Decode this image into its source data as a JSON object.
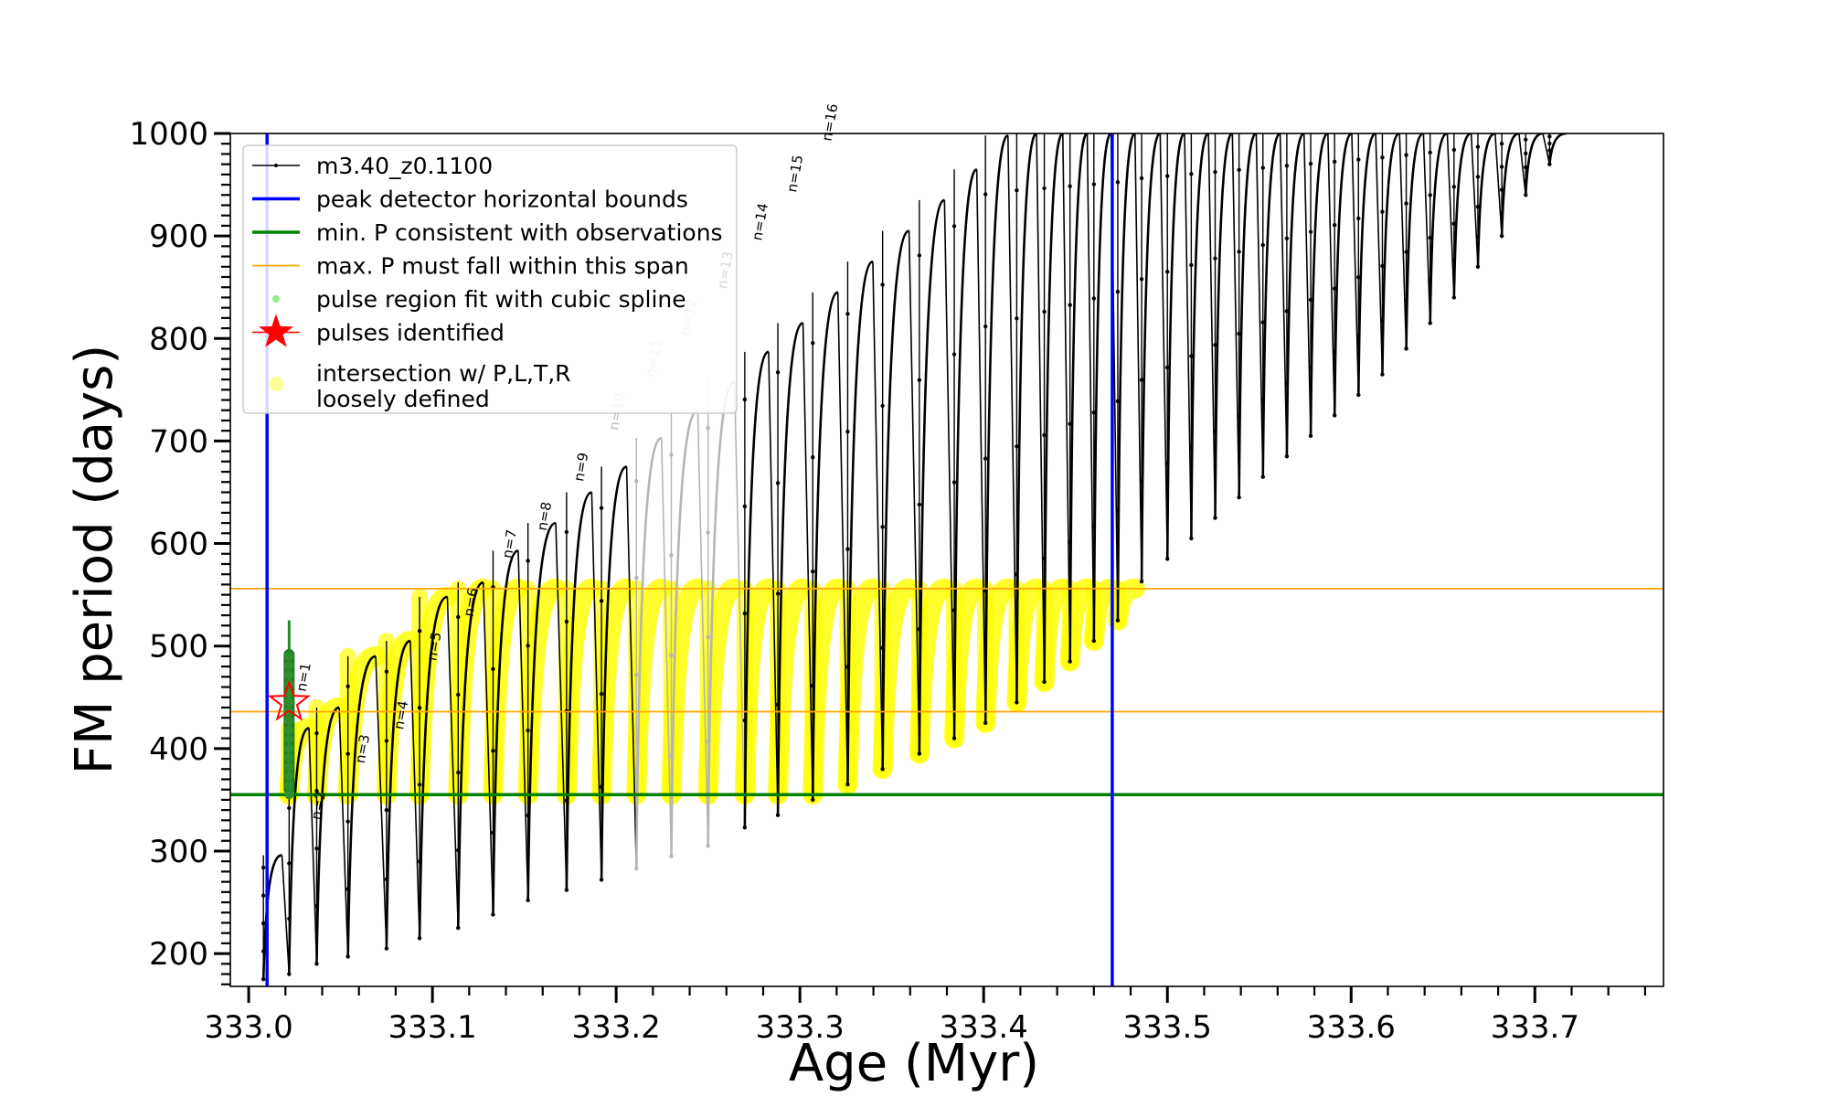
{
  "chart_data": {
    "type": "line",
    "xlabel": "Age (Myr)",
    "ylabel": "FM period (days)",
    "xlim": [
      332.99,
      333.77
    ],
    "ylim": [
      168,
      1000
    ],
    "x_ticks": [
      "333.0",
      "333.1",
      "333.2",
      "333.3",
      "333.4",
      "333.5",
      "333.6",
      "333.7"
    ],
    "y_ticks": [
      "200",
      "300",
      "400",
      "500",
      "600",
      "700",
      "800",
      "900",
      "1000"
    ],
    "grid": false,
    "legend_position": "top-left",
    "legend": [
      {
        "label": "m3.40_z0.1100",
        "style": "line-dot",
        "color": "#000000"
      },
      {
        "label": "peak detector horizontal bounds",
        "style": "line",
        "color": "#0000ff"
      },
      {
        "label": "min. P consistent with observations",
        "style": "line",
        "color": "#008000"
      },
      {
        "label": "max. P must fall within this span",
        "style": "thin-line",
        "color": "#ffa500"
      },
      {
        "label": "pulse region fit with cubic spline",
        "style": "dot",
        "color": "#90ee90"
      },
      {
        "label": "pulses identified",
        "style": "star",
        "color": "#ff0000"
      },
      {
        "label": "intersection w/ P,L,T,R",
        "label2": "loosely defined",
        "style": "big-dot",
        "color": "#ffff99"
      }
    ],
    "reference_lines": {
      "vertical_blue_x": [
        333.01,
        333.47
      ],
      "horizontal_green_y": 355,
      "horizontal_orange_y": [
        436,
        556
      ]
    },
    "series": [
      {
        "name": "m3.40_z0.1100",
        "pulses": [
          {
            "x": 333.008,
            "min": 175,
            "max": 296
          },
          {
            "x": 333.022,
            "min": 180,
            "max": 420
          },
          {
            "x": 333.037,
            "min": 190,
            "max": 440
          },
          {
            "x": 333.054,
            "min": 197,
            "max": 490
          },
          {
            "x": 333.075,
            "min": 205,
            "max": 505
          },
          {
            "x": 333.093,
            "min": 215,
            "max": 548
          },
          {
            "x": 333.114,
            "min": 225,
            "max": 562
          },
          {
            "x": 333.133,
            "min": 238,
            "max": 593
          },
          {
            "x": 333.152,
            "min": 252,
            "max": 620
          },
          {
            "x": 333.173,
            "min": 262,
            "max": 650
          },
          {
            "x": 333.192,
            "min": 272,
            "max": 675
          },
          {
            "x": 333.211,
            "min": 283,
            "max": 703
          },
          {
            "x": 333.23,
            "min": 295,
            "max": 730
          },
          {
            "x": 333.25,
            "min": 305,
            "max": 758
          },
          {
            "x": 333.27,
            "min": 323,
            "max": 787
          },
          {
            "x": 333.288,
            "min": 335,
            "max": 815
          },
          {
            "x": 333.307,
            "min": 350,
            "max": 845
          },
          {
            "x": 333.326,
            "min": 365,
            "max": 875
          },
          {
            "x": 333.345,
            "min": 380,
            "max": 905
          },
          {
            "x": 333.365,
            "min": 395,
            "max": 935
          },
          {
            "x": 333.384,
            "min": 410,
            "max": 965
          },
          {
            "x": 333.401,
            "min": 425,
            "max": 998
          },
          {
            "x": 333.418,
            "min": 445,
            "max": 1000
          },
          {
            "x": 333.433,
            "min": 465,
            "max": 1000
          },
          {
            "x": 333.447,
            "min": 485,
            "max": 1000
          },
          {
            "x": 333.46,
            "min": 505,
            "max": 1000
          },
          {
            "x": 333.473,
            "min": 525,
            "max": 1000
          },
          {
            "x": 333.486,
            "min": 563,
            "max": 1000
          },
          {
            "x": 333.5,
            "min": 585,
            "max": 1000
          },
          {
            "x": 333.513,
            "min": 605,
            "max": 1000
          },
          {
            "x": 333.526,
            "min": 625,
            "max": 1000
          },
          {
            "x": 333.539,
            "min": 645,
            "max": 1000
          },
          {
            "x": 333.552,
            "min": 665,
            "max": 1000
          },
          {
            "x": 333.565,
            "min": 685,
            "max": 1000
          },
          {
            "x": 333.578,
            "min": 705,
            "max": 1000
          },
          {
            "x": 333.591,
            "min": 725,
            "max": 1000
          },
          {
            "x": 333.604,
            "min": 745,
            "max": 1000
          },
          {
            "x": 333.617,
            "min": 765,
            "max": 1000
          },
          {
            "x": 333.63,
            "min": 790,
            "max": 1000
          },
          {
            "x": 333.643,
            "min": 815,
            "max": 1000
          },
          {
            "x": 333.656,
            "min": 840,
            "max": 1000
          },
          {
            "x": 333.669,
            "min": 870,
            "max": 1000
          },
          {
            "x": 333.682,
            "min": 900,
            "max": 1000
          },
          {
            "x": 333.695,
            "min": 940,
            "max": 1000
          },
          {
            "x": 333.708,
            "min": 970,
            "max": 1000
          }
        ]
      }
    ],
    "pulse_labels": [
      {
        "text": "n=1",
        "x": 333.031,
        "y": 455,
        "color": "#000000"
      },
      {
        "text": "n=2",
        "x": 333.039,
        "y": 330,
        "color": "#000000"
      },
      {
        "text": "n=3",
        "x": 333.063,
        "y": 385,
        "color": "#000000"
      },
      {
        "text": "n=4",
        "x": 333.084,
        "y": 418,
        "color": "#000000"
      },
      {
        "text": "n=5",
        "x": 333.102,
        "y": 485,
        "color": "#000000"
      },
      {
        "text": "n=6",
        "x": 333.122,
        "y": 528,
        "color": "#000000"
      },
      {
        "text": "n=7",
        "x": 333.143,
        "y": 585,
        "color": "#000000"
      },
      {
        "text": "n=8",
        "x": 333.162,
        "y": 612,
        "color": "#000000"
      },
      {
        "text": "n=9",
        "x": 333.182,
        "y": 660,
        "color": "#000000"
      },
      {
        "text": "n=10",
        "x": 333.201,
        "y": 710,
        "color": "#bbbbbb"
      },
      {
        "text": "n=11",
        "x": 333.221,
        "y": 762,
        "color": "#bbbbbb"
      },
      {
        "text": "n=12",
        "x": 333.24,
        "y": 802,
        "color": "#bbbbbb"
      },
      {
        "text": "n=13",
        "x": 333.26,
        "y": 848,
        "color": "#000000"
      },
      {
        "text": "n=14",
        "x": 333.279,
        "y": 895,
        "color": "#000000"
      },
      {
        "text": "n=15",
        "x": 333.298,
        "y": 942,
        "color": "#000000"
      },
      {
        "text": "n=16",
        "x": 333.317,
        "y": 992,
        "color": "#000000"
      }
    ],
    "yellow_region": {
      "y_min": 355,
      "y_max": 556
    },
    "gray_pulses": [
      333.211,
      333.23,
      333.25
    ],
    "spline_region": {
      "x": 333.022,
      "y_min": 355,
      "y_max": 525
    },
    "pulse_identified": {
      "x": 333.022,
      "y": 445
    }
  }
}
